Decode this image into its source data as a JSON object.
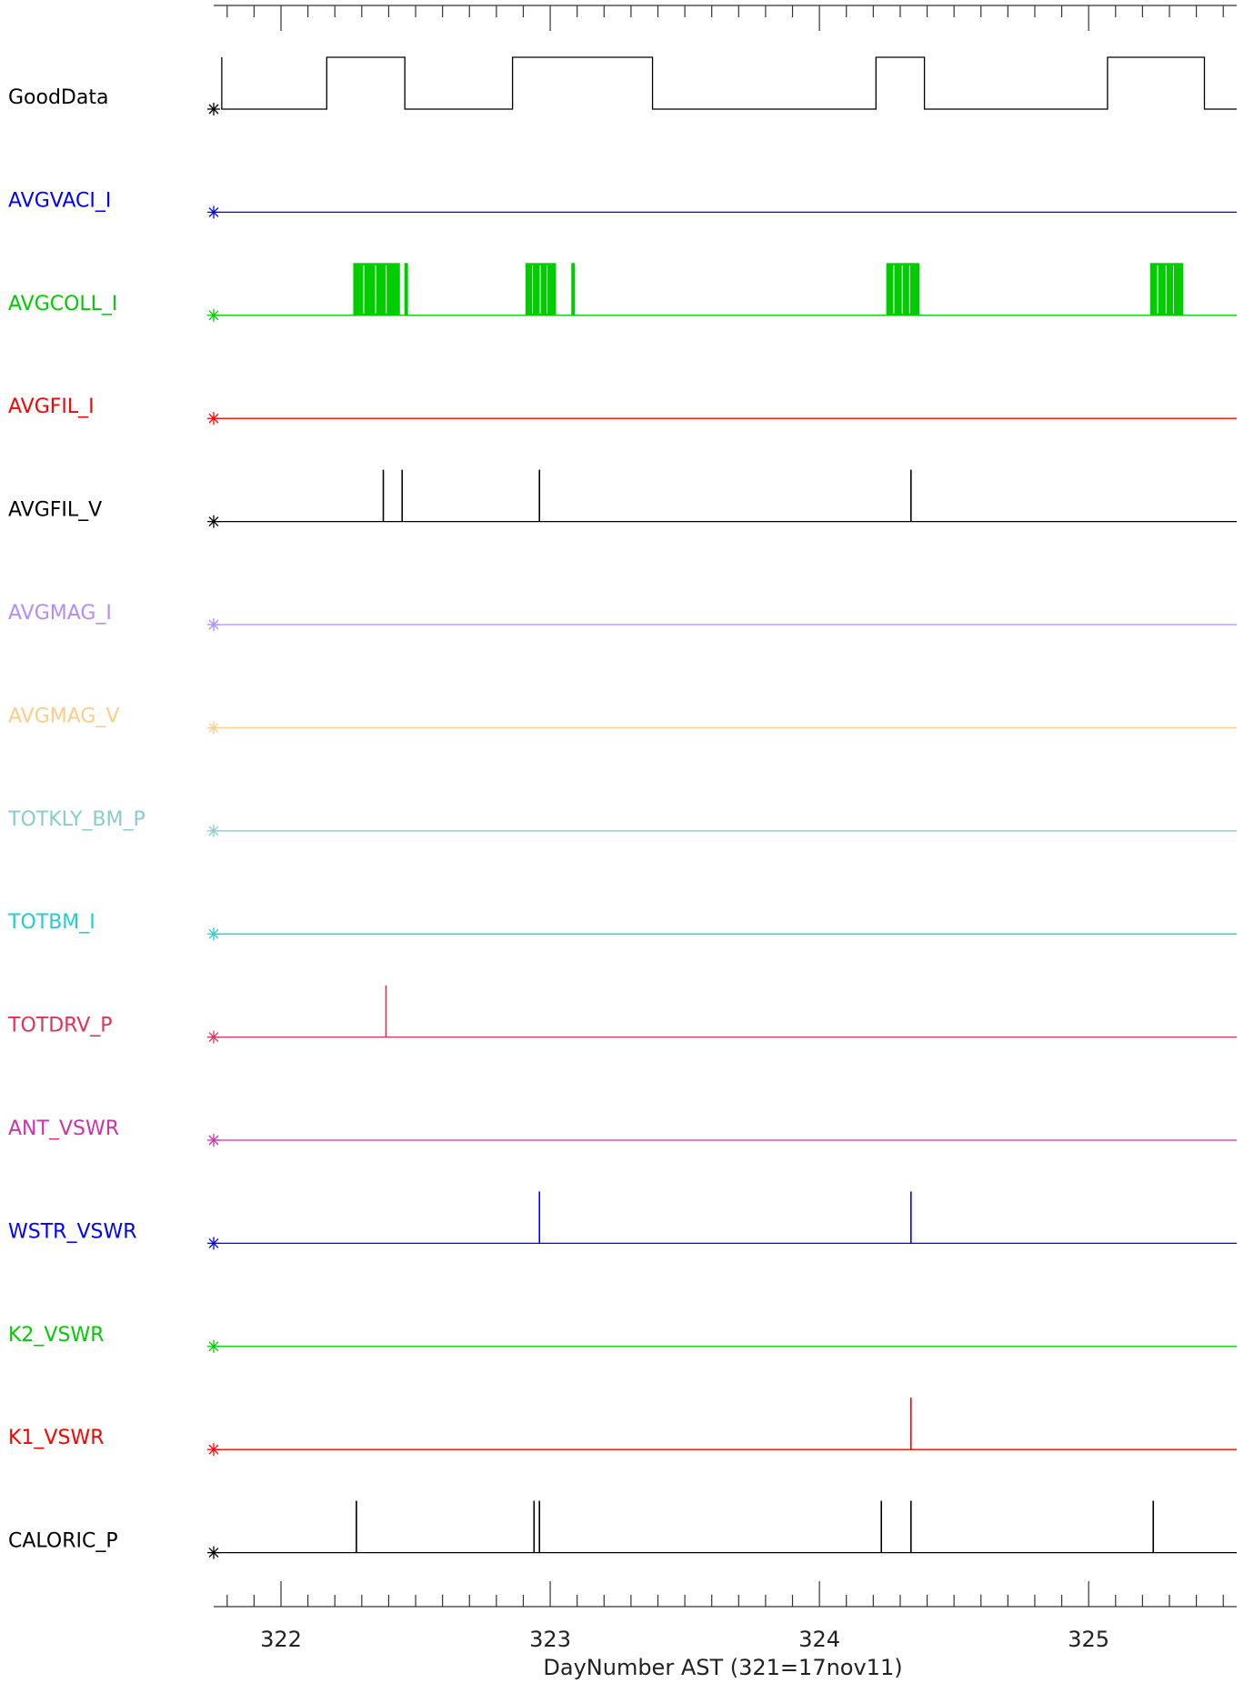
{
  "chart_data": {
    "type": "line",
    "xlabel": "DayNumber AST (321=17nov11)",
    "xlim": [
      321.75,
      325.55
    ],
    "x_major_ticks": [
      "322",
      "323",
      "324",
      "325"
    ],
    "x_minor_step": 0.1,
    "series": [
      {
        "name": "GoodData",
        "color": "#000000",
        "style": "step",
        "segments": [
          [
            321.78,
            0
          ],
          [
            322.17,
            1
          ],
          [
            322.46,
            0
          ],
          [
            322.86,
            1
          ],
          [
            323.38,
            0
          ],
          [
            324.21,
            1
          ],
          [
            324.39,
            0
          ],
          [
            325.07,
            1
          ],
          [
            325.43,
            0
          ],
          [
            325.55,
            0
          ]
        ]
      },
      {
        "name": "AVGVACI_I",
        "color": "#0000ff",
        "style": "spikes",
        "spikes": []
      },
      {
        "name": "AVGCOLL_I",
        "color": "#00cc00",
        "style": "blocks",
        "blocks": [
          [
            322.27,
            322.44
          ],
          [
            322.46,
            322.47
          ],
          [
            322.91,
            323.02
          ],
          [
            323.08,
            323.09
          ],
          [
            324.25,
            324.37
          ],
          [
            325.23,
            325.35
          ]
        ]
      },
      {
        "name": "AVGFIL_I",
        "color": "#ff0000",
        "style": "spikes",
        "spikes": []
      },
      {
        "name": "AVGFIL_V",
        "color": "#000000",
        "style": "spikes",
        "spikes": [
          322.38,
          322.45,
          322.96,
          324.34
        ]
      },
      {
        "name": "AVGMAG_I",
        "color": "#b38cff",
        "style": "spikes",
        "spikes": []
      },
      {
        "name": "AVGMAG_V",
        "color": "#ffcc88",
        "style": "spikes",
        "spikes": []
      },
      {
        "name": "TOTKLY_BM_P",
        "color": "#88cccc",
        "style": "spikes",
        "spikes": []
      },
      {
        "name": "TOTBM_I",
        "color": "#22cccc",
        "style": "spikes",
        "spikes": []
      },
      {
        "name": "TOTDRV_P",
        "color": "#dd3355",
        "style": "spikes",
        "spikes": [
          322.39
        ]
      },
      {
        "name": "ANT_VSWR",
        "color": "#cc33aa",
        "style": "spikes",
        "spikes": []
      },
      {
        "name": "WSTR_VSWR",
        "color": "#0000ff",
        "style": "spikes",
        "spikes": [
          322.96,
          324.34
        ]
      },
      {
        "name": "K2_VSWR",
        "color": "#00cc00",
        "style": "spikes",
        "spikes": []
      },
      {
        "name": "K1_VSWR",
        "color": "#ff0000",
        "style": "spikes",
        "spikes": [
          324.34
        ]
      },
      {
        "name": "CALORIC_P",
        "color": "#000000",
        "style": "spikes",
        "spikes": [
          322.28,
          322.94,
          322.96,
          324.23,
          324.34,
          325.24
        ]
      }
    ]
  }
}
